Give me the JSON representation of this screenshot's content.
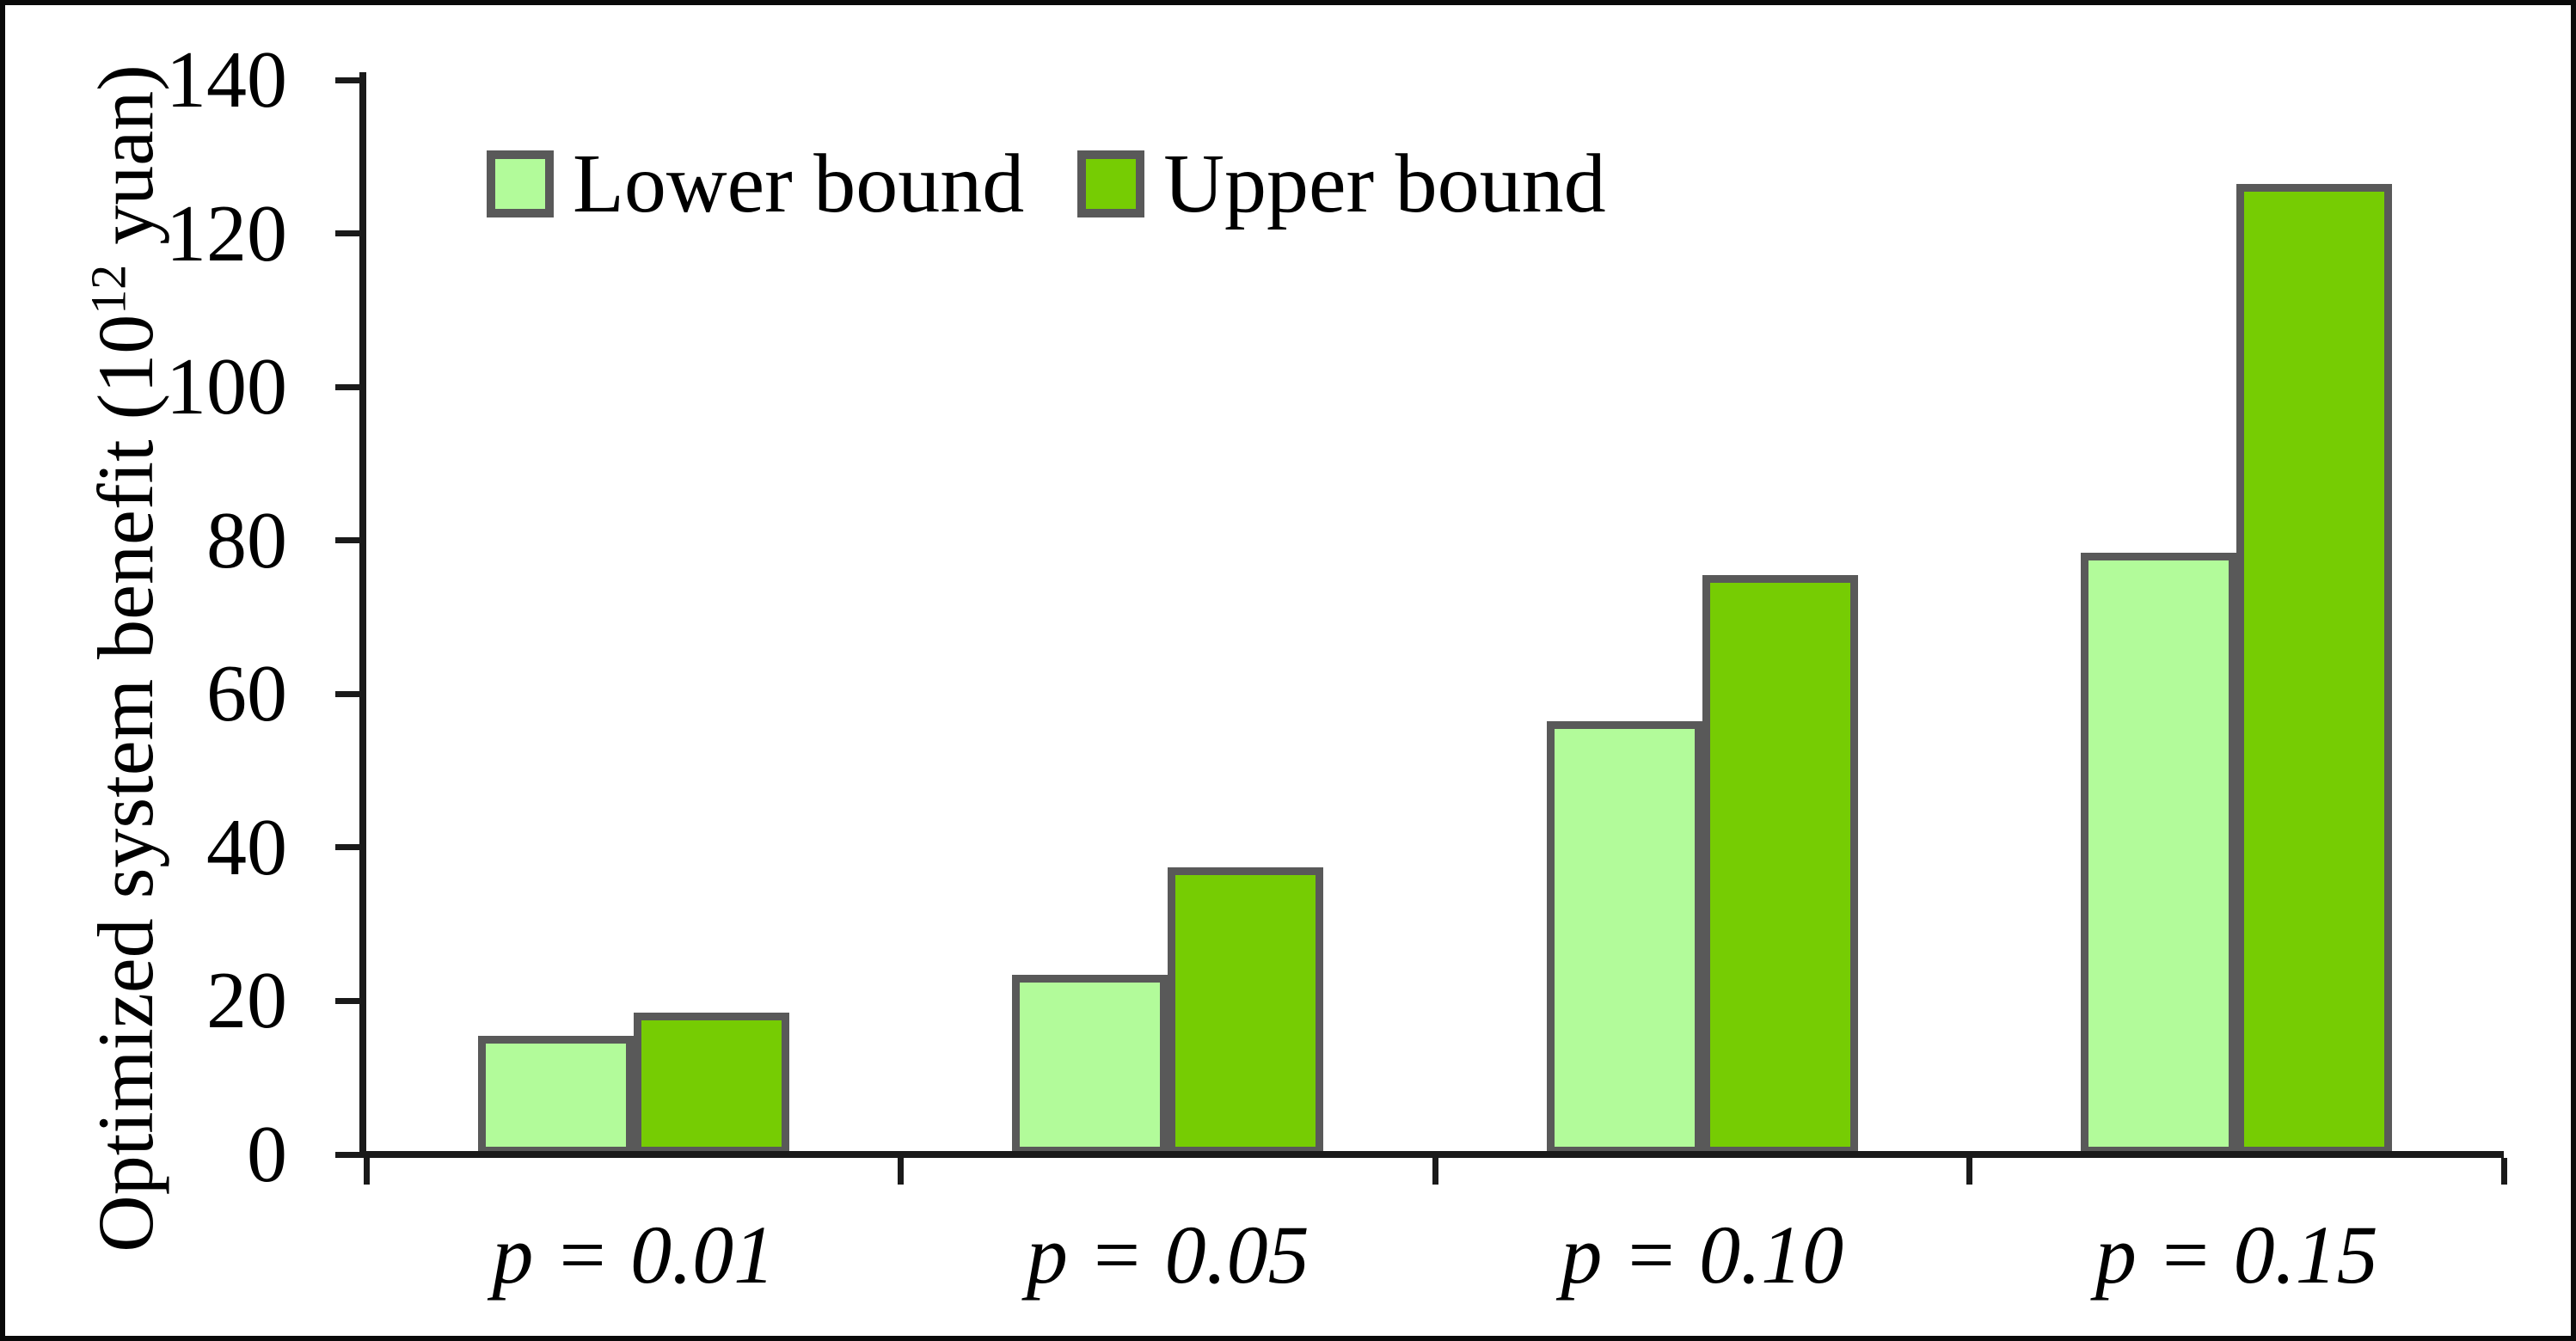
{
  "chart_data": {
    "type": "bar",
    "title": "",
    "categories": [
      "p = 0.01",
      "p = 0.05",
      "p = 0.10",
      "p = 0.15"
    ],
    "series": [
      {
        "name": "Lower bound",
        "color": "#b2fb9a",
        "values": [
          15,
          23,
          56,
          78
        ]
      },
      {
        "name": "Upper bound",
        "color": "#76cc03",
        "values": [
          18,
          37,
          75,
          126
        ]
      }
    ],
    "ylabel": {
      "prefix": "Optimized  system benefit (10",
      "superscript": "12",
      "suffix": " yuan)"
    },
    "xlabel": "",
    "ylim": [
      0,
      140
    ],
    "yticks": [
      0,
      20,
      40,
      60,
      80,
      100,
      120,
      140
    ],
    "grid": false,
    "legend_position": "inside-top-left",
    "bar_border_color": "#595959",
    "axis_color": "#1a1a1a",
    "text_color": "#000000",
    "background_color": "#ffffff",
    "frame_border_color": "#0a0a0a"
  }
}
